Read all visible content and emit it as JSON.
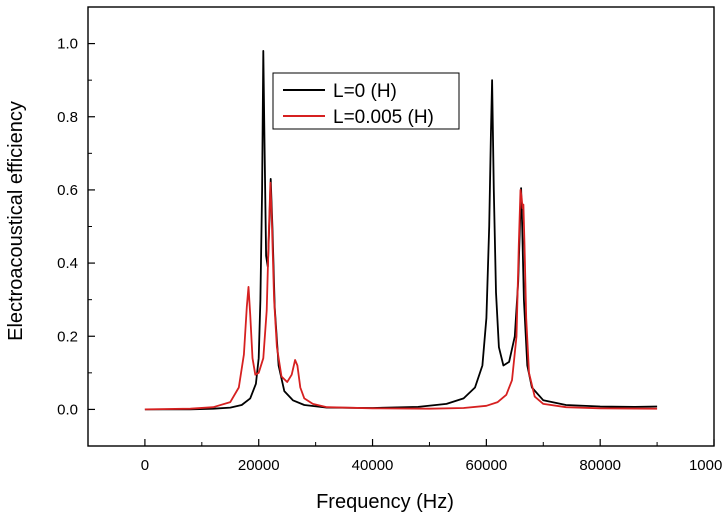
{
  "chart_data": {
    "type": "line",
    "title": "",
    "xlabel": "Frequency (Hz)",
    "ylabel": "Electroacoustical efficiency",
    "xlim": [
      -10000,
      100000
    ],
    "ylim": [
      -0.1,
      1.1
    ],
    "x_ticks": [
      0,
      20000,
      40000,
      60000,
      80000,
      100000
    ],
    "x_tick_labels": [
      "0",
      "20000",
      "40000",
      "60000",
      "80000",
      "100000"
    ],
    "y_ticks": [
      0.0,
      0.2,
      0.4,
      0.6,
      0.8,
      1.0
    ],
    "y_tick_labels": [
      "0.0",
      "0.2",
      "0.4",
      "0.6",
      "0.8",
      "1.0"
    ],
    "grid": false,
    "legend_position": "top-center",
    "series": [
      {
        "name": "L=0 (H)",
        "color": "#000000",
        "x": [
          0,
          8000,
          12000,
          15000,
          17000,
          18500,
          19500,
          20000,
          20300,
          20600,
          20800,
          21000,
          21300,
          21600,
          21900,
          22100,
          22400,
          22800,
          23500,
          24500,
          26000,
          28000,
          32000,
          40000,
          48000,
          53000,
          56000,
          58000,
          59300,
          60000,
          60500,
          60800,
          61000,
          61300,
          61700,
          62200,
          63000,
          64000,
          65000,
          65600,
          65900,
          66100,
          66300,
          66600,
          67200,
          68000,
          70000,
          74000,
          80000,
          86000,
          90000
        ],
        "y": [
          0.0,
          0.0,
          0.002,
          0.005,
          0.012,
          0.03,
          0.07,
          0.14,
          0.3,
          0.6,
          0.98,
          0.75,
          0.42,
          0.39,
          0.52,
          0.63,
          0.5,
          0.28,
          0.12,
          0.05,
          0.025,
          0.012,
          0.005,
          0.004,
          0.007,
          0.015,
          0.03,
          0.06,
          0.12,
          0.25,
          0.5,
          0.75,
          0.9,
          0.6,
          0.32,
          0.17,
          0.12,
          0.13,
          0.2,
          0.35,
          0.5,
          0.605,
          0.5,
          0.3,
          0.12,
          0.06,
          0.025,
          0.012,
          0.008,
          0.007,
          0.008
        ]
      },
      {
        "name": "L=0.005 (H)",
        "color": "#d62020",
        "x": [
          0,
          8000,
          12000,
          15000,
          16500,
          17400,
          17900,
          18200,
          18500,
          18900,
          19400,
          20000,
          20800,
          21400,
          21800,
          22050,
          22300,
          22700,
          23200,
          24000,
          25000,
          25800,
          26400,
          26800,
          27300,
          28000,
          29500,
          32000,
          40000,
          50000,
          56000,
          60000,
          62000,
          63500,
          64500,
          65300,
          65700,
          66000,
          66200,
          66350,
          66500,
          66700,
          67000,
          67500,
          68500,
          70000,
          74000,
          80000,
          90000
        ],
        "y": [
          0.0,
          0.002,
          0.006,
          0.02,
          0.06,
          0.15,
          0.28,
          0.335,
          0.26,
          0.14,
          0.095,
          0.1,
          0.14,
          0.27,
          0.5,
          0.62,
          0.52,
          0.3,
          0.17,
          0.09,
          0.075,
          0.095,
          0.135,
          0.12,
          0.06,
          0.03,
          0.015,
          0.006,
          0.003,
          0.002,
          0.004,
          0.01,
          0.02,
          0.04,
          0.08,
          0.2,
          0.45,
          0.6,
          0.58,
          0.55,
          0.56,
          0.45,
          0.25,
          0.1,
          0.035,
          0.015,
          0.006,
          0.003,
          0.002
        ]
      }
    ]
  }
}
